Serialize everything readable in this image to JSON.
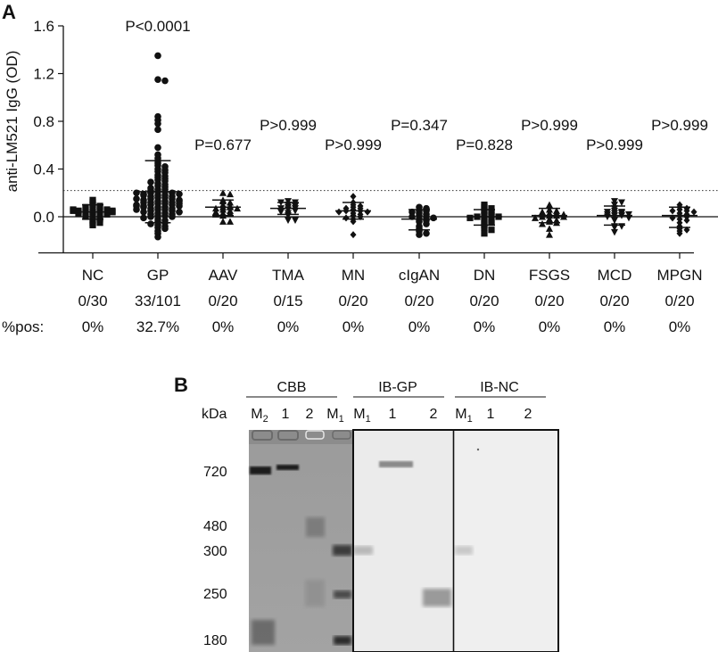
{
  "panel_a": {
    "label": "A",
    "ylabel": "anti-LM521 IgG (OD)",
    "threshold": 0.22,
    "row_label_pos": "%pos:"
  },
  "panel_b": {
    "label": "B",
    "kda_label": "kDa",
    "groups": [
      {
        "title": "CBB",
        "lanes": [
          "M2",
          "1",
          "2",
          "M1"
        ]
      },
      {
        "title": "IB-GP",
        "lanes": [
          "M1",
          "1",
          "2"
        ]
      },
      {
        "title": "IB-NC",
        "lanes": [
          "M1",
          "1",
          "2"
        ]
      }
    ],
    "markers_kda": [
      "720",
      "480",
      "300",
      "250",
      "180"
    ]
  },
  "chart_data": [
    {
      "type": "scatter",
      "subtype": "dot-plot",
      "title": "",
      "xlabel": "",
      "ylabel": "anti-LM521 IgG (OD)",
      "ylim": [
        -0.25,
        1.6
      ],
      "yticks": [
        0.0,
        0.4,
        0.8,
        1.2,
        1.6
      ],
      "threshold_line": 0.22,
      "categories": [
        "NC",
        "GP",
        "AAV",
        "TMA",
        "MN",
        "cIgAN",
        "DN",
        "FSGS",
        "MCD",
        "MPGN"
      ],
      "markers": [
        "square",
        "circle",
        "triangle-up",
        "triangle-down",
        "diamond",
        "circle",
        "square",
        "triangle-up",
        "triangle-down",
        "diamond"
      ],
      "positive_counts": [
        "0/30",
        "33/101",
        "0/20",
        "0/15",
        "0/20",
        "0/20",
        "0/20",
        "0/20",
        "0/20",
        "0/20"
      ],
      "percent_positive": [
        "0%",
        "32.7%",
        "0%",
        "0%",
        "0%",
        "0%",
        "0%",
        "0%",
        "0%",
        "0%"
      ],
      "p_values": [
        "",
        "P<0.0001",
        "P=0.677",
        "P>0.999",
        "P>0.999",
        "P=0.347",
        "P=0.828",
        "P>0.999",
        "P>0.999",
        "P>0.999"
      ],
      "summary": [
        {
          "group": "NC",
          "mean": 0.04,
          "sd_low": -0.02,
          "sd_high": 0.1
        },
        {
          "group": "GP",
          "mean": 0.21,
          "sd_low": -0.05,
          "sd_high": 0.47
        },
        {
          "group": "AAV",
          "mean": 0.08,
          "sd_low": 0.01,
          "sd_high": 0.14
        },
        {
          "group": "TMA",
          "mean": 0.07,
          "sd_low": 0.02,
          "sd_high": 0.12
        },
        {
          "group": "MN",
          "mean": 0.05,
          "sd_low": -0.02,
          "sd_high": 0.12
        },
        {
          "group": "cIgAN",
          "mean": -0.02,
          "sd_low": -0.11,
          "sd_high": 0.06
        },
        {
          "group": "DN",
          "mean": 0.0,
          "sd_low": -0.07,
          "sd_high": 0.06
        },
        {
          "group": "FSGS",
          "mean": 0.01,
          "sd_low": -0.05,
          "sd_high": 0.07
        },
        {
          "group": "MCD",
          "mean": 0.01,
          "sd_low": -0.07,
          "sd_high": 0.09
        },
        {
          "group": "MPGN",
          "mean": 0.01,
          "sd_low": -0.09,
          "sd_high": 0.08
        }
      ],
      "series": [
        {
          "name": "NC",
          "values": [
            0.04,
            0.05,
            0.03,
            0.06,
            0.02,
            0.08,
            0.1,
            0.12,
            0.14,
            0.06,
            0.05,
            0.04,
            0.03,
            0.01,
            -0.01,
            -0.03,
            -0.05,
            -0.07,
            -0.05,
            0.02,
            0.07,
            0.09,
            0.05,
            0.04,
            0.03,
            0.06,
            0.0,
            -0.02,
            0.08,
            0.05
          ]
        },
        {
          "name": "GP",
          "values": [
            1.35,
            1.15,
            1.14,
            0.84,
            0.81,
            0.78,
            0.73,
            0.58,
            0.52,
            0.49,
            0.47,
            0.45,
            0.43,
            0.42,
            0.4,
            0.39,
            0.38,
            0.37,
            0.35,
            0.34,
            0.33,
            0.32,
            0.31,
            0.3,
            0.29,
            0.28,
            0.27,
            0.26,
            0.25,
            0.24,
            0.23,
            0.23,
            0.22,
            0.21,
            0.21,
            0.2,
            0.2,
            0.19,
            0.19,
            0.18,
            0.18,
            0.17,
            0.17,
            0.16,
            0.16,
            0.15,
            0.15,
            0.14,
            0.14,
            0.13,
            0.13,
            0.12,
            0.12,
            0.11,
            0.11,
            0.1,
            0.1,
            0.09,
            0.09,
            0.08,
            0.08,
            0.07,
            0.07,
            0.06,
            0.06,
            0.05,
            0.05,
            0.04,
            0.04,
            0.03,
            0.03,
            0.02,
            0.02,
            0.01,
            0.01,
            0.0,
            0.0,
            -0.01,
            -0.02,
            -0.03,
            -0.04,
            -0.05,
            -0.06,
            -0.07,
            -0.08,
            -0.09,
            -0.1,
            -0.12,
            -0.14,
            -0.17,
            0.12,
            0.1,
            0.08,
            0.06,
            0.04,
            0.15,
            0.18,
            0.2,
            0.13,
            0.11,
            0.09
          ]
        },
        {
          "name": "AAV",
          "values": [
            0.2,
            0.19,
            0.14,
            0.13,
            0.12,
            0.1,
            0.09,
            0.08,
            0.08,
            0.07,
            0.07,
            0.06,
            0.05,
            0.04,
            0.03,
            0.03,
            0.02,
            0.01,
            -0.04,
            -0.04
          ]
        },
        {
          "name": "TMA",
          "values": [
            0.13,
            0.12,
            0.12,
            0.1,
            0.09,
            0.08,
            0.07,
            0.07,
            0.06,
            0.05,
            0.04,
            0.03,
            0.01,
            -0.03,
            -0.03
          ]
        },
        {
          "name": "MN",
          "values": [
            0.17,
            0.12,
            0.1,
            0.09,
            0.08,
            0.07,
            0.07,
            0.06,
            0.05,
            0.05,
            0.04,
            0.04,
            0.03,
            0.02,
            0.01,
            0.0,
            -0.01,
            -0.02,
            -0.04,
            -0.15
          ]
        },
        {
          "name": "cIgAN",
          "values": [
            0.08,
            0.07,
            0.05,
            0.05,
            0.04,
            0.03,
            0.02,
            0.01,
            0.0,
            0.0,
            -0.01,
            -0.02,
            -0.03,
            -0.04,
            -0.06,
            -0.08,
            -0.1,
            -0.12,
            -0.15,
            -0.14
          ]
        },
        {
          "name": "DN",
          "values": [
            0.1,
            0.08,
            0.07,
            0.05,
            0.04,
            0.03,
            0.02,
            0.01,
            0.01,
            0.0,
            0.0,
            -0.01,
            -0.02,
            -0.03,
            -0.04,
            -0.05,
            -0.07,
            -0.09,
            -0.11,
            -0.14
          ]
        },
        {
          "name": "FSGS",
          "values": [
            0.1,
            0.06,
            0.05,
            0.04,
            0.03,
            0.03,
            0.02,
            0.02,
            0.01,
            0.01,
            0.0,
            0.0,
            -0.01,
            -0.02,
            -0.03,
            -0.04,
            -0.05,
            -0.06,
            -0.1,
            -0.15
          ]
        },
        {
          "name": "MCD",
          "values": [
            0.13,
            0.12,
            0.1,
            0.07,
            0.05,
            0.04,
            0.04,
            0.03,
            0.03,
            0.02,
            0.02,
            0.01,
            0.01,
            0.0,
            -0.01,
            -0.03,
            -0.08,
            -0.09,
            -0.08,
            -0.13
          ]
        },
        {
          "name": "MPGN",
          "values": [
            0.1,
            0.08,
            0.07,
            0.06,
            0.05,
            0.05,
            0.04,
            0.03,
            0.02,
            0.01,
            0.0,
            -0.01,
            -0.02,
            -0.03,
            -0.05,
            -0.08,
            -0.1,
            -0.11,
            -0.12,
            -0.14
          ]
        }
      ]
    },
    {
      "type": "gel-blot",
      "title": "",
      "panels": [
        "CBB",
        "IB-GP",
        "IB-NC"
      ],
      "ylabel": "kDa",
      "marker_kda": [
        720,
        480,
        300,
        250,
        180
      ]
    }
  ]
}
